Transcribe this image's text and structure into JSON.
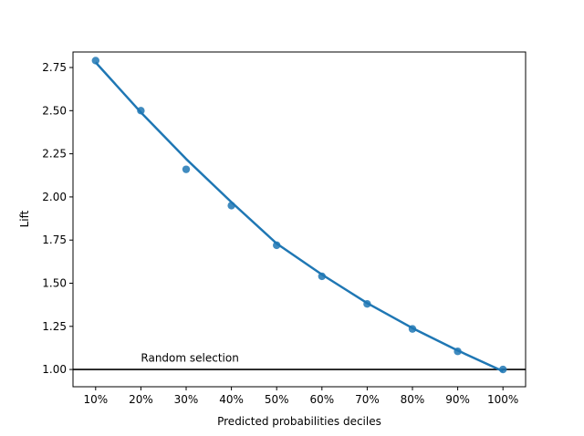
{
  "chart_data": {
    "type": "scatter",
    "title": "",
    "xlabel": "Predicted probabilities deciles",
    "ylabel": "Lift",
    "x_tick_labels": [
      "10%",
      "20%",
      "30%",
      "40%",
      "50%",
      "60%",
      "70%",
      "80%",
      "90%",
      "100%"
    ],
    "y_tick_labels": [
      "1.00",
      "1.25",
      "1.50",
      "1.75",
      "2.00",
      "2.25",
      "2.50",
      "2.75"
    ],
    "y_ticks": [
      1.0,
      1.25,
      1.5,
      1.75,
      2.0,
      2.25,
      2.5,
      2.75
    ],
    "xlim": [
      0.5,
      10.5
    ],
    "ylim": [
      0.9,
      2.84
    ],
    "grid": false,
    "x": [
      1,
      2,
      3,
      4,
      5,
      6,
      7,
      8,
      9,
      10
    ],
    "series": [
      {
        "values": [
          2.79,
          2.5,
          2.16,
          1.95,
          1.72,
          1.54,
          1.38,
          1.235,
          1.105,
          1.0
        ],
        "trend_values": [
          2.78,
          2.49,
          2.22,
          1.97,
          1.73,
          1.55,
          1.385,
          1.24,
          1.11,
          0.99
        ],
        "color": "#1f77b4"
      }
    ],
    "reference_line": {
      "y": 1.0,
      "color": "#000000"
    },
    "annotation": {
      "text": "Random selection",
      "x": 2,
      "y": 1.05
    }
  }
}
